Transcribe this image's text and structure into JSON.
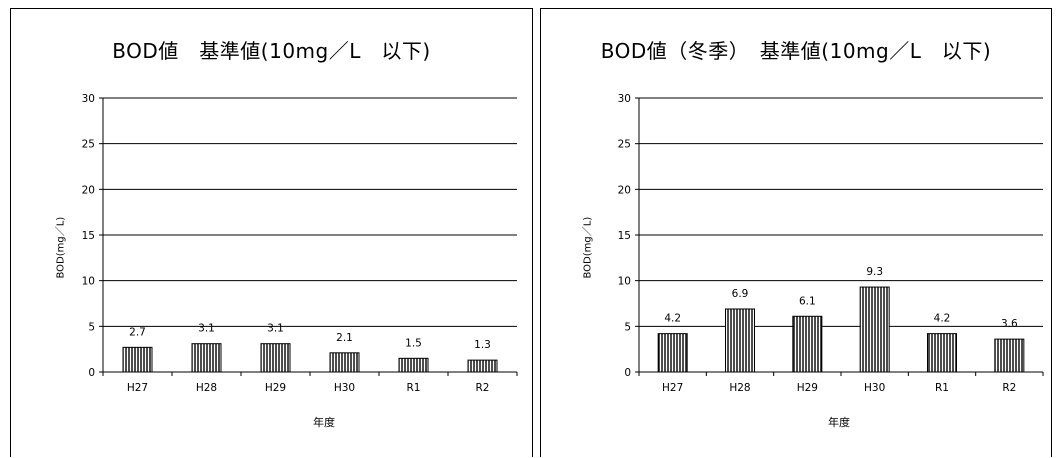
{
  "chart_data": [
    {
      "type": "bar",
      "title": "BOD値　基準値(10mg／L　以下)",
      "xlabel": "年度",
      "ylabel": "BOD(mg／L)",
      "categories": [
        "H27",
        "H28",
        "H29",
        "H30",
        "R1",
        "R2"
      ],
      "values": [
        2.7,
        3.1,
        3.1,
        2.1,
        1.5,
        1.3
      ],
      "data_labels": [
        "2.7",
        "3.1",
        "3.1",
        "2.1",
        "1.5",
        "1.3"
      ],
      "ylim": [
        0,
        30
      ],
      "yticks": [
        "0",
        "5",
        "10",
        "15",
        "20",
        "25",
        "30"
      ],
      "grid": true,
      "bar_fill": "vertical-hatch"
    },
    {
      "type": "bar",
      "title": "BOD値（冬季）　基準値(10mg／L　以下)",
      "xlabel": "年度",
      "ylabel": "BOD(mg／L)",
      "categories": [
        "H27",
        "H28",
        "H29",
        "H30",
        "R1",
        "R2"
      ],
      "values": [
        4.2,
        6.9,
        6.1,
        9.3,
        4.2,
        3.6
      ],
      "data_labels": [
        "4.2",
        "6.9",
        "6.1",
        "9.3",
        "4.2",
        "3.6"
      ],
      "ylim": [
        0,
        30
      ],
      "yticks": [
        "0",
        "5",
        "10",
        "15",
        "20",
        "25",
        "30"
      ],
      "grid": true,
      "bar_fill": "vertical-hatch"
    }
  ],
  "colors": {
    "bar_stroke": "#000000",
    "grid": "#000000",
    "background": "#ffffff"
  }
}
